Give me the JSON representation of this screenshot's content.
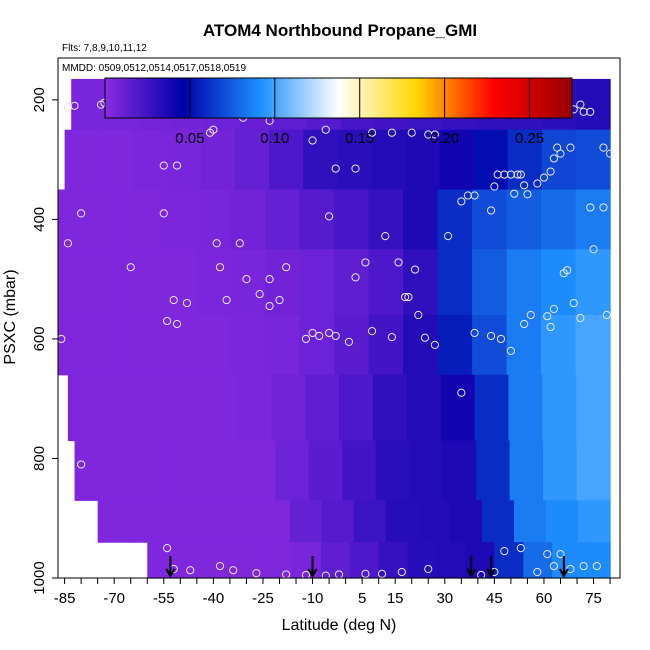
{
  "chart_data": {
    "type": "heatmap",
    "title": "ATOM4 Northbound Propane_GMI",
    "flights_note": "Flts: 7,8,9,10,11,12",
    "dates_note": "MMDD: 0509,0512,0514,0517,0518,0519",
    "xlabel": "Latitude (deg N)",
    "ylabel": "PSXC (mbar)",
    "xlim": [
      -87,
      83
    ],
    "ylim": [
      1000,
      130
    ],
    "x_ticks": [
      "-85",
      "-70",
      "-55",
      "-40",
      "-25",
      "-10",
      "5",
      "15",
      "30",
      "45",
      "60",
      "75"
    ],
    "y_ticks": [
      "200",
      "400",
      "600",
      "800",
      "1000"
    ],
    "colorbar": {
      "range": [
        0.0,
        0.275
      ],
      "ticks": [
        "0.05",
        "0.10",
        "0.15",
        "0.20",
        "0.25"
      ],
      "colors": [
        "#8a2be2",
        "#0000aa",
        "#1e90ff",
        "#ffffff",
        "#ffd700",
        "#ff0000",
        "#990000"
      ]
    },
    "field_rows": [
      {
        "p_top": 165,
        "p_bot": 250,
        "x_start": -83,
        "x_end": 80,
        "values": [
          0.006,
          0.006,
          0.007,
          0.008,
          0.01,
          0.012,
          0.015,
          0.018,
          0.022,
          0.024,
          0.026,
          0.028,
          0.03,
          0.03,
          0.032,
          0.034
        ]
      },
      {
        "p_top": 250,
        "p_bot": 350,
        "x_start": -85,
        "x_end": 80,
        "values": [
          0.004,
          0.004,
          0.005,
          0.006,
          0.008,
          0.012,
          0.02,
          0.03,
          0.032,
          0.034,
          0.036,
          0.04,
          0.05,
          0.06,
          0.068,
          0.07
        ]
      },
      {
        "p_top": 350,
        "p_bot": 450,
        "x_start": -87,
        "x_end": 80,
        "values": [
          0.004,
          0.004,
          0.004,
          0.005,
          0.006,
          0.008,
          0.012,
          0.018,
          0.022,
          0.028,
          0.036,
          0.06,
          0.07,
          0.075,
          0.08,
          0.085
        ]
      },
      {
        "p_top": 450,
        "p_bot": 560,
        "x_start": -87,
        "x_end": 80,
        "values": [
          0.004,
          0.004,
          0.004,
          0.004,
          0.005,
          0.006,
          0.008,
          0.01,
          0.014,
          0.02,
          0.03,
          0.06,
          0.075,
          0.085,
          0.09,
          0.095
        ]
      },
      {
        "p_top": 560,
        "p_bot": 660,
        "x_start": -87,
        "x_end": 80,
        "values": [
          0.004,
          0.004,
          0.004,
          0.004,
          0.004,
          0.005,
          0.006,
          0.01,
          0.016,
          0.024,
          0.034,
          0.055,
          0.07,
          0.085,
          0.095,
          0.1
        ]
      },
      {
        "p_top": 660,
        "p_bot": 770,
        "x_start": -84,
        "x_end": 80,
        "values": [
          0.004,
          0.004,
          0.004,
          0.004,
          0.004,
          0.005,
          0.008,
          0.014,
          0.02,
          0.03,
          0.034,
          0.04,
          0.06,
          0.085,
          0.095,
          0.1
        ]
      },
      {
        "p_top": 770,
        "p_bot": 870,
        "x_start": -82,
        "x_end": 80,
        "values": [
          0.004,
          0.004,
          0.004,
          0.004,
          0.004,
          0.004,
          0.01,
          0.016,
          0.024,
          0.032,
          0.034,
          0.036,
          0.06,
          0.085,
          0.095,
          0.1
        ]
      },
      {
        "p_top": 870,
        "p_bot": 940,
        "x_start": -75,
        "x_end": 80,
        "values": [
          0.004,
          0.004,
          0.004,
          0.004,
          0.004,
          0.004,
          0.012,
          0.018,
          0.026,
          0.033,
          0.034,
          0.036,
          0.06,
          0.085,
          0.09,
          0.095
        ]
      },
      {
        "p_top": 940,
        "p_bot": 1000,
        "x_start": -60,
        "x_end": 80,
        "values": [
          0.004,
          0.004,
          0.004,
          0.004,
          0.004,
          0.006,
          0.014,
          0.02,
          0.028,
          0.033,
          0.034,
          0.036,
          0.06,
          0.08,
          0.09,
          0.09
        ]
      }
    ],
    "observations": [
      [
        -70,
        190
      ],
      [
        -67,
        190
      ],
      [
        -64,
        190
      ],
      [
        -74,
        208
      ],
      [
        -73,
        205
      ],
      [
        -84,
        212
      ],
      [
        -82,
        210
      ],
      [
        -34,
        200
      ],
      [
        -15,
        205
      ],
      [
        33,
        184
      ],
      [
        -40,
        250
      ],
      [
        -41,
        255
      ],
      [
        -31,
        230
      ],
      [
        -23,
        235
      ],
      [
        -10,
        268
      ],
      [
        -6,
        250
      ],
      [
        -3,
        315
      ],
      [
        3,
        315
      ],
      [
        8,
        255
      ],
      [
        14,
        255
      ],
      [
        20,
        255
      ],
      [
        25,
        258
      ],
      [
        27,
        258
      ],
      [
        -55,
        310
      ],
      [
        -51,
        310
      ],
      [
        -55,
        390
      ],
      [
        -80,
        390
      ],
      [
        -84,
        440
      ],
      [
        -65,
        480
      ],
      [
        -38,
        480
      ],
      [
        -39,
        440
      ],
      [
        -32,
        440
      ],
      [
        -26,
        525
      ],
      [
        -23,
        500
      ],
      [
        -18,
        480
      ],
      [
        -5,
        395
      ],
      [
        3,
        497
      ],
      [
        6,
        472
      ],
      [
        12,
        428
      ],
      [
        16,
        472
      ],
      [
        18,
        530
      ],
      [
        21,
        484
      ],
      [
        31,
        428
      ],
      [
        35,
        370
      ],
      [
        37,
        360
      ],
      [
        39,
        360
      ],
      [
        44,
        385
      ],
      [
        45,
        345
      ],
      [
        46,
        325
      ],
      [
        48,
        325
      ],
      [
        50,
        325
      ],
      [
        51,
        357
      ],
      [
        52,
        325
      ],
      [
        53,
        325
      ],
      [
        54,
        343
      ],
      [
        55,
        358
      ],
      [
        58,
        340
      ],
      [
        60,
        330
      ],
      [
        62,
        320
      ],
      [
        63,
        298
      ],
      [
        64,
        280
      ],
      [
        65,
        290
      ],
      [
        68,
        280
      ],
      [
        69,
        216
      ],
      [
        71,
        208
      ],
      [
        72,
        220
      ],
      [
        74,
        220
      ],
      [
        78,
        280
      ],
      [
        80,
        290
      ],
      [
        74,
        380
      ],
      [
        75,
        450
      ],
      [
        78,
        380
      ],
      [
        -54,
        570
      ],
      [
        -51,
        575
      ],
      [
        -48,
        540
      ],
      [
        -52,
        535
      ],
      [
        -36,
        535
      ],
      [
        -30,
        500
      ],
      [
        -23,
        545
      ],
      [
        -20,
        535
      ],
      [
        -12,
        600
      ],
      [
        -10,
        590
      ],
      [
        -8,
        595
      ],
      [
        -5,
        590
      ],
      [
        -3,
        595
      ],
      [
        1,
        605
      ],
      [
        8,
        587
      ],
      [
        14,
        597
      ],
      [
        19,
        530
      ],
      [
        22,
        560
      ],
      [
        24,
        598
      ],
      [
        27,
        610
      ],
      [
        39,
        590
      ],
      [
        44,
        595
      ],
      [
        47,
        600
      ],
      [
        50,
        620
      ],
      [
        54,
        575
      ],
      [
        56,
        560
      ],
      [
        61,
        562
      ],
      [
        62,
        580
      ],
      [
        63,
        550
      ],
      [
        66,
        490
      ],
      [
        67,
        485
      ],
      [
        69,
        540
      ],
      [
        71,
        565
      ],
      [
        79,
        560
      ],
      [
        -86,
        600
      ],
      [
        -80,
        810
      ],
      [
        -54,
        950
      ],
      [
        -52,
        985
      ],
      [
        -47,
        987
      ],
      [
        -38,
        980
      ],
      [
        -34,
        987
      ],
      [
        -27,
        992
      ],
      [
        -18,
        994
      ],
      [
        -12,
        995
      ],
      [
        -6,
        996
      ],
      [
        -2,
        994
      ],
      [
        6,
        993
      ],
      [
        11,
        993
      ],
      [
        17,
        990
      ],
      [
        25,
        985
      ],
      [
        35,
        690
      ],
      [
        41,
        995
      ],
      [
        45,
        990
      ],
      [
        48,
        955
      ],
      [
        53,
        950
      ],
      [
        58,
        990
      ],
      [
        61,
        960
      ],
      [
        63,
        980
      ],
      [
        65,
        960
      ],
      [
        68,
        985
      ],
      [
        72,
        980
      ],
      [
        76,
        980
      ]
    ],
    "flight_markers": [
      -53,
      -10,
      38,
      44,
      66
    ]
  }
}
